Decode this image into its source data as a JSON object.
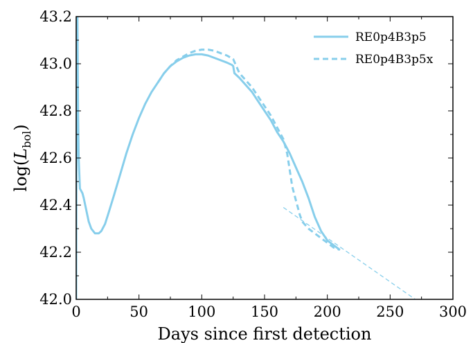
{
  "chart_data": {
    "type": "line",
    "title": "",
    "xlabel": "Days since first detection",
    "ylabel": "log(L_bol)",
    "ylabel_parts": {
      "prefix": "log(",
      "var": "L",
      "sub": "bol",
      "suffix": ")"
    },
    "xlim": [
      0,
      300
    ],
    "ylim": [
      42.0,
      43.2
    ],
    "xticks": [
      0,
      50,
      100,
      150,
      200,
      250,
      300
    ],
    "yticks": [
      42.0,
      42.2,
      42.4,
      42.6,
      42.8,
      43.0,
      43.2
    ],
    "xtick_labels": [
      "0",
      "50",
      "100",
      "150",
      "200",
      "250",
      "300"
    ],
    "ytick_labels": [
      "42.0",
      "42.2",
      "42.4",
      "42.6",
      "42.8",
      "43.0",
      "43.2"
    ],
    "grid": false,
    "legend_position": "top-right",
    "colors": {
      "series": "#87ceeb",
      "axes": "#000000"
    },
    "series": [
      {
        "name": "RE0p4B3p5",
        "style": "solid",
        "x": [
          0,
          0.5,
          1,
          1.5,
          2,
          3,
          4,
          5,
          6,
          8,
          10,
          12,
          15,
          18,
          20,
          23,
          26,
          30,
          35,
          40,
          45,
          50,
          55,
          60,
          65,
          70,
          75,
          80,
          85,
          90,
          95,
          100,
          105,
          110,
          115,
          120,
          124,
          125,
          126,
          130,
          135,
          140,
          145,
          150,
          155,
          160,
          165,
          170,
          175,
          180,
          185,
          190,
          195,
          200,
          205,
          210
        ],
        "y": [
          42.0,
          43.2,
          43.2,
          42.8,
          42.6,
          42.47,
          42.46,
          42.45,
          42.43,
          42.38,
          42.33,
          42.3,
          42.28,
          42.28,
          42.29,
          42.32,
          42.37,
          42.44,
          42.53,
          42.62,
          42.7,
          42.77,
          42.83,
          42.88,
          42.92,
          42.96,
          42.99,
          43.01,
          43.025,
          43.035,
          43.04,
          43.04,
          43.035,
          43.025,
          43.015,
          43.005,
          42.995,
          42.99,
          42.96,
          42.94,
          42.91,
          42.88,
          42.84,
          42.8,
          42.76,
          42.71,
          42.67,
          42.62,
          42.56,
          42.5,
          42.43,
          42.35,
          42.29,
          42.25,
          42.23,
          42.21
        ]
      },
      {
        "name": "RE0p4B3p5x",
        "style": "dashed",
        "x": [
          65,
          70,
          75,
          80,
          85,
          90,
          95,
          100,
          105,
          110,
          115,
          120,
          125,
          130,
          135,
          140,
          145,
          150,
          155,
          160,
          165,
          168,
          170,
          172,
          175,
          178,
          180,
          185,
          190,
          195,
          200,
          205,
          210
        ],
        "y": [
          42.92,
          42.96,
          42.99,
          43.015,
          43.03,
          43.045,
          43.055,
          43.06,
          43.06,
          43.055,
          43.045,
          43.035,
          43.02,
          42.96,
          42.93,
          42.9,
          42.86,
          42.82,
          42.78,
          42.73,
          42.68,
          42.62,
          42.55,
          42.48,
          42.42,
          42.36,
          42.33,
          42.3,
          42.28,
          42.26,
          42.24,
          42.22,
          42.21
        ]
      },
      {
        "style": "thin-dashed",
        "x": [
          165,
          270
        ],
        "y": [
          42.39,
          42.0
        ]
      }
    ]
  }
}
